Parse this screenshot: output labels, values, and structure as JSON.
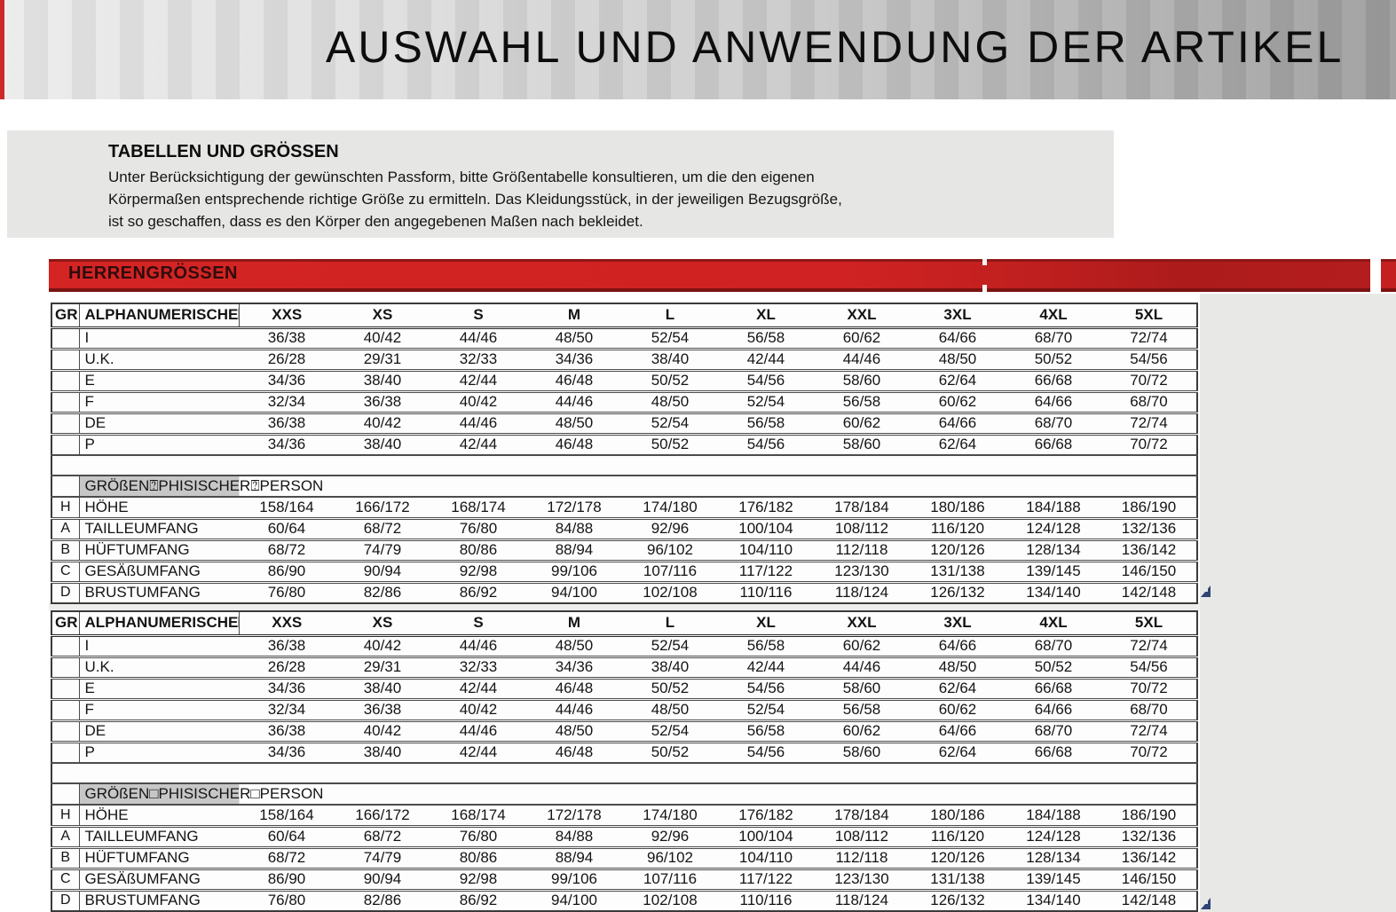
{
  "title": "AUSWAHL UND ANWENDUNG DER ARTIKEL",
  "intro": {
    "heading": "TABELLEN UND GRÖSSEN",
    "lines": [
      "Unter Berücksichtigung der gewünschten Passform, bitte Größentabelle konsultieren, um die den eigenen",
      "Körpermaßen entsprechende richtige Größe zu ermitteln. Das Kleidungsstück, in der jeweiligen Bezugsgröße,",
      "ist so geschaffen, dass es den Körper den angegebenen Maßen nach bekleidet."
    ]
  },
  "banner": {
    "label": "HERRENGRÖSSEN"
  },
  "size_table": {
    "header": {
      "gr": "GR",
      "label": "ALPHANUMERISCHE⍰G",
      "sizes": [
        "XXS",
        "XS",
        "S",
        "M",
        "L",
        "XL",
        "XXL",
        "3XL",
        "4XL",
        "5XL"
      ]
    },
    "alpha_rows": [
      {
        "gr": "",
        "label": "I",
        "values": [
          "36/38",
          "40/42",
          "44/46",
          "48/50",
          "52/54",
          "56/58",
          "60/62",
          "64/66",
          "68/70",
          "72/74"
        ]
      },
      {
        "gr": "",
        "label": "U.K.",
        "values": [
          "26/28",
          "29/31",
          "32/33",
          "34/36",
          "38/40",
          "42/44",
          "44/46",
          "48/50",
          "50/52",
          "54/56"
        ]
      },
      {
        "gr": "",
        "label": "E",
        "values": [
          "34/36",
          "38/40",
          "42/44",
          "46/48",
          "50/52",
          "54/56",
          "58/60",
          "62/64",
          "66/68",
          "70/72"
        ]
      },
      {
        "gr": "",
        "label": "F",
        "values": [
          "32/34",
          "36/38",
          "40/42",
          "44/46",
          "48/50",
          "52/54",
          "56/58",
          "60/62",
          "64/66",
          "68/70"
        ]
      },
      {
        "gr": "",
        "label": "DE",
        "values": [
          "36/38",
          "40/42",
          "44/46",
          "48/50",
          "52/54",
          "56/58",
          "60/62",
          "64/66",
          "68/70",
          "72/74"
        ]
      },
      {
        "gr": "",
        "label": "P",
        "values": [
          "34/36",
          "38/40",
          "42/44",
          "46/48",
          "50/52",
          "54/56",
          "58/60",
          "62/64",
          "66/68",
          "70/72"
        ]
      }
    ],
    "phys_header_t1": "GRÖßEN⍰PHISISCHER⍰PERSON",
    "phys_header_t2": "GRÖßEN□PHISISCHER□PERSON",
    "phys_rows": [
      {
        "gr": "H",
        "label": "HÖHE",
        "values": [
          "158/164",
          "166/172",
          "168/174",
          "172/178",
          "174/180",
          "176/182",
          "178/184",
          "180/186",
          "184/188",
          "186/190"
        ]
      },
      {
        "gr": "A",
        "label": "TAILLEUMFANG",
        "values": [
          "60/64",
          "68/72",
          "76/80",
          "84/88",
          "92/96",
          "100/104",
          "108/112",
          "116/120",
          "124/128",
          "132/136"
        ]
      },
      {
        "gr": "B",
        "label": "HÜFTUMFANG",
        "values": [
          "68/72",
          "74/79",
          "80/86",
          "88/94",
          "96/102",
          "104/110",
          "112/118",
          "120/126",
          "128/134",
          "136/142"
        ]
      },
      {
        "gr": "C",
        "label": "GESÄßUMFANG",
        "values": [
          "86/90",
          "90/94",
          "92/98",
          "99/106",
          "107/116",
          "117/122",
          "123/130",
          "131/138",
          "139/145",
          "146/150"
        ]
      },
      {
        "gr": "D",
        "label": "BRUSTUMFANG",
        "values": [
          "76/80",
          "82/86",
          "86/92",
          "94/100",
          "102/108",
          "110/116",
          "118/124",
          "126/132",
          "134/140",
          "142/148"
        ]
      }
    ]
  },
  "colors": {
    "banner_red": "#d02222",
    "banner_text": "#300c0c",
    "highlight_gray": "#c7c7c7",
    "corner_blue": "#2d4474",
    "accent_stripe_red": "#cc2a2a"
  }
}
